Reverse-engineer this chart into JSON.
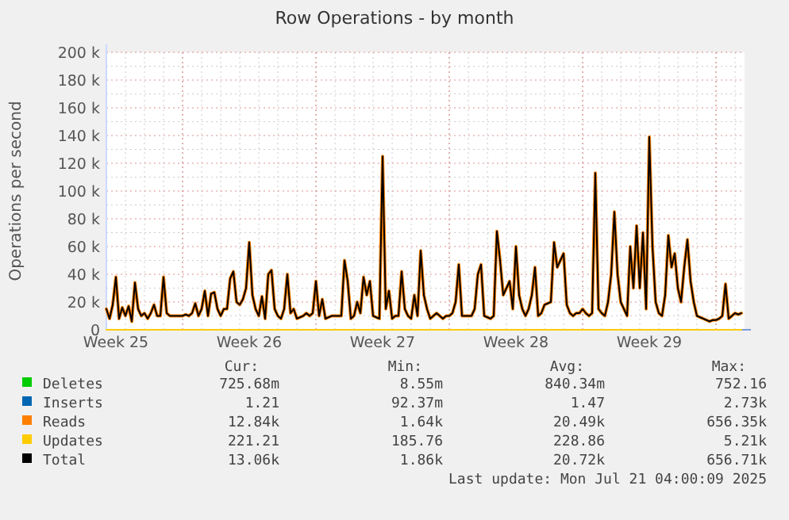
{
  "chart_data": {
    "type": "line",
    "title": "Row Operations - by month",
    "ylabel": "Operations per second",
    "categories": [
      null,
      null,
      null,
      "Week 25",
      null,
      null,
      null,
      null,
      null,
      null,
      null,
      null,
      null,
      null,
      null,
      null,
      null,
      null,
      null,
      null,
      null,
      null,
      null,
      null,
      null,
      null,
      null,
      null,
      null,
      null,
      null,
      null,
      null,
      null,
      null,
      null,
      null,
      null,
      null,
      null,
      null,
      null,
      null,
      null,
      null,
      "Week 26",
      null,
      null,
      null,
      null,
      null,
      null,
      null,
      null,
      null,
      null,
      null,
      null,
      null,
      null,
      null,
      null,
      null,
      null,
      null,
      null,
      null,
      null,
      null,
      null,
      null,
      null,
      null,
      null,
      null,
      null,
      null,
      null,
      null,
      null,
      null,
      null,
      null,
      null,
      null,
      null,
      null,
      "Week 27",
      null,
      null,
      null,
      null,
      null,
      null,
      null,
      null,
      null,
      null,
      null,
      null,
      null,
      null,
      null,
      null,
      null,
      null,
      null,
      null,
      null,
      null,
      null,
      null,
      null,
      null,
      null,
      null,
      null,
      null,
      null,
      null,
      null,
      null,
      null,
      null,
      null,
      null,
      null,
      null,
      null,
      "Week 28",
      null,
      null,
      null,
      null,
      null,
      null,
      null,
      null,
      null,
      null,
      null,
      null,
      null,
      null,
      null,
      null,
      null,
      null,
      null,
      null,
      null,
      null,
      null,
      null,
      null,
      null,
      null,
      null,
      null,
      null,
      null,
      null,
      null,
      null,
      null,
      null,
      null,
      null,
      null,
      null,
      null,
      "Week 29",
      null,
      null,
      null,
      null,
      null,
      null,
      null,
      null,
      null,
      null,
      null,
      null,
      null,
      null,
      null,
      null,
      null,
      null,
      null,
      null,
      null,
      null,
      null,
      null,
      null,
      null,
      null,
      null,
      null
    ],
    "ylim": [
      0,
      200000
    ],
    "yticks": [
      {
        "value": 0,
        "label": "0"
      },
      {
        "value": 20000,
        "label": "20 k"
      },
      {
        "value": 40000,
        "label": "40 k"
      },
      {
        "value": 60000,
        "label": "60 k"
      },
      {
        "value": 80000,
        "label": "80 k"
      },
      {
        "value": 100000,
        "label": "100 k"
      },
      {
        "value": 120000,
        "label": "120 k"
      },
      {
        "value": 140000,
        "label": "140 k"
      },
      {
        "value": 160000,
        "label": "160 k"
      },
      {
        "value": 180000,
        "label": "180 k"
      },
      {
        "value": 200000,
        "label": "200 k"
      }
    ],
    "grid": true,
    "legend": "bottom",
    "series": [
      {
        "name": "Deletes",
        "color": "#00cc00",
        "values": [
          null,
          null,
          null,
          null,
          null,
          null,
          null,
          null,
          null,
          null,
          null,
          null,
          null,
          null,
          null,
          null,
          null,
          null,
          null,
          null,
          null,
          null,
          null,
          null,
          null,
          null,
          null,
          null,
          null,
          null,
          null,
          null,
          null,
          null,
          null,
          null,
          null,
          null,
          null,
          null,
          null,
          null,
          null,
          null,
          null,
          null,
          null,
          null,
          null,
          null,
          null,
          null,
          null,
          null,
          null,
          null,
          null,
          null,
          null,
          null,
          null,
          null,
          null,
          null,
          null,
          null,
          null,
          null,
          null,
          null,
          null,
          null,
          null,
          null,
          null,
          null,
          null,
          null,
          null,
          null,
          null,
          null,
          null,
          null,
          null,
          null,
          null,
          null,
          null,
          null,
          null,
          null,
          null,
          null,
          null,
          null,
          null,
          null,
          null,
          null,
          null,
          null,
          null,
          null,
          null,
          null,
          null,
          null,
          null,
          null,
          null,
          null,
          null,
          null,
          null,
          null,
          null,
          null,
          null,
          null,
          null,
          null,
          null,
          null,
          null,
          null,
          null,
          null,
          null,
          null,
          null,
          null,
          null,
          null,
          null,
          null,
          null,
          null,
          null,
          null,
          null,
          null,
          null,
          null,
          null,
          null,
          null,
          null,
          null,
          null,
          null,
          null,
          null,
          null,
          null,
          null,
          null,
          null,
          null,
          null,
          null,
          null,
          null,
          null,
          null,
          null,
          null,
          null,
          null,
          null,
          null,
          null,
          null,
          null,
          null,
          null,
          null,
          null,
          null,
          null,
          null,
          null,
          null,
          null,
          null,
          null,
          null,
          null,
          null,
          null,
          null,
          null,
          null,
          null,
          null,
          null,
          null,
          null,
          null,
          null,
          null
        ]
      },
      {
        "name": "Inserts",
        "color": "#0066b3",
        "values": [
          null,
          null,
          null,
          null,
          null,
          null,
          null,
          null,
          null,
          null,
          null,
          null,
          null,
          null,
          null,
          null,
          null,
          null,
          null,
          null,
          null,
          null,
          null,
          null,
          null,
          null,
          null,
          null,
          null,
          null,
          null,
          null,
          null,
          null,
          null,
          null,
          null,
          null,
          null,
          null,
          null,
          null,
          null,
          null,
          null,
          null,
          null,
          null,
          null,
          null,
          null,
          null,
          null,
          null,
          null,
          null,
          null,
          null,
          null,
          null,
          null,
          null,
          null,
          null,
          null,
          null,
          null,
          null,
          null,
          null,
          null,
          null,
          null,
          null,
          null,
          null,
          null,
          null,
          null,
          null,
          null,
          null,
          null,
          null,
          null,
          null,
          null,
          null,
          null,
          null,
          null,
          null,
          null,
          null,
          null,
          null,
          null,
          null,
          null,
          null,
          null,
          null,
          null,
          null,
          null,
          null,
          null,
          null,
          null,
          null,
          null,
          null,
          null,
          null,
          null,
          null,
          null,
          null,
          null,
          null,
          null,
          null,
          null,
          null,
          null,
          null,
          null,
          null,
          null,
          null,
          null,
          null,
          null,
          null,
          null,
          null,
          null,
          null,
          null,
          null,
          null,
          null,
          null,
          null,
          null,
          null,
          null,
          null,
          null,
          null,
          null,
          null,
          null,
          null,
          null,
          null,
          null,
          null,
          null,
          null,
          null,
          null,
          null,
          null,
          null,
          null,
          null,
          null,
          null,
          null,
          null,
          null,
          null,
          null,
          null,
          null,
          null,
          null,
          null,
          null,
          null,
          null,
          null,
          null,
          null,
          null,
          null,
          null,
          null,
          null,
          null,
          null,
          null,
          null,
          null,
          null,
          null,
          null,
          null,
          null,
          null
        ]
      },
      {
        "name": "Reads",
        "color": "#ff8000",
        "values": [
          15000,
          8000,
          18000,
          38000,
          8000,
          16000,
          10000,
          17000,
          6000,
          34000,
          15000,
          10000,
          12000,
          8000,
          12000,
          18000,
          10000,
          10000,
          38000,
          12000,
          10000,
          10000,
          10000,
          10000,
          10000,
          11000,
          10000,
          12000,
          19000,
          10000,
          15000,
          28000,
          10000,
          26000,
          27000,
          15000,
          10000,
          15000,
          15000,
          37000,
          42000,
          20000,
          18000,
          22000,
          30000,
          63000,
          25000,
          15000,
          10000,
          24000,
          8000,
          40000,
          43000,
          15000,
          10000,
          8000,
          15000,
          40000,
          12000,
          15000,
          8000,
          9000,
          10000,
          12000,
          10000,
          12000,
          35000,
          10000,
          22000,
          8000,
          9000,
          10000,
          10000,
          10000,
          10000,
          50000,
          35000,
          8000,
          10000,
          20000,
          12000,
          38000,
          25000,
          35000,
          10000,
          9000,
          8000,
          125000,
          15000,
          28000,
          8000,
          10000,
          10000,
          42000,
          15000,
          10000,
          8000,
          25000,
          10000,
          57000,
          25000,
          15000,
          8000,
          10000,
          12000,
          10000,
          8000,
          10000,
          10000,
          12000,
          20000,
          47000,
          10000,
          10000,
          10000,
          10000,
          15000,
          40000,
          47000,
          10000,
          9000,
          8000,
          10000,
          71000,
          50000,
          25000,
          30000,
          35000,
          15000,
          60000,
          25000,
          15000,
          10000,
          15000,
          25000,
          45000,
          10000,
          12000,
          18000,
          19000,
          20000,
          63000,
          45000,
          50000,
          55000,
          18000,
          12000,
          10000,
          12000,
          12000,
          15000,
          12000,
          10000,
          12000,
          113000,
          15000,
          12000,
          10000,
          20000,
          40000,
          85000,
          40000,
          20000,
          15000,
          10000,
          60000,
          30000,
          75000,
          30000,
          70000,
          15000,
          139000,
          60000,
          20000,
          12000,
          10000,
          25000,
          68000,
          45000,
          55000,
          30000,
          20000,
          45000,
          65000,
          35000,
          20000,
          10000,
          9000,
          8000,
          7000,
          6000,
          7000,
          7000,
          8000,
          10000,
          33000,
          8000,
          10000,
          12000,
          11000,
          12000
        ]
      },
      {
        "name": "Updates",
        "color": "#ffcc00",
        "values": [
          0,
          0,
          0,
          0,
          0,
          0,
          0,
          0,
          0,
          0,
          0,
          0,
          0,
          0,
          0,
          0,
          0,
          0,
          0,
          0,
          0,
          0,
          0,
          0,
          0,
          0,
          0,
          0,
          0,
          0,
          0,
          0,
          0,
          0,
          0,
          0,
          0,
          0,
          0,
          0,
          0,
          0,
          0,
          0,
          0,
          0,
          0,
          0,
          0,
          0,
          0,
          0,
          0,
          0,
          0,
          0,
          0,
          0,
          0,
          0,
          0,
          0,
          0,
          0,
          0,
          0,
          0,
          0,
          0,
          0,
          0,
          0,
          0,
          0,
          0,
          0,
          0,
          0,
          0,
          0,
          0,
          0,
          0,
          0,
          0,
          0,
          0,
          0,
          0,
          0,
          0,
          0,
          0,
          0,
          0,
          0,
          0,
          0,
          0,
          0,
          0,
          0,
          0,
          0,
          0,
          0,
          0,
          0,
          0,
          0,
          0,
          0,
          0,
          0,
          0,
          0,
          0,
          0,
          0,
          0,
          0,
          0,
          0,
          0,
          0,
          0,
          0,
          0,
          0,
          0,
          0,
          0,
          0,
          0,
          0,
          0,
          0,
          0,
          0,
          0,
          0,
          0,
          0,
          0,
          0,
          0,
          0,
          0,
          0,
          0,
          0,
          0,
          0,
          0,
          0,
          0,
          0,
          0,
          0,
          0,
          0,
          0,
          0,
          0,
          0,
          0,
          0,
          0,
          0,
          0,
          0,
          0,
          0,
          0,
          0,
          0,
          0,
          0,
          0,
          0,
          0,
          0,
          0,
          0,
          0,
          0,
          0,
          0,
          0,
          0,
          0,
          0,
          0,
          0,
          0,
          0,
          0,
          0,
          0,
          0,
          0
        ]
      },
      {
        "name": "Total",
        "color": "#000000",
        "values": [
          15000,
          8000,
          18000,
          38000,
          8000,
          16000,
          10000,
          17000,
          6000,
          34000,
          15000,
          10000,
          12000,
          8000,
          12000,
          18000,
          10000,
          10000,
          38000,
          12000,
          10000,
          10000,
          10000,
          10000,
          10000,
          11000,
          10000,
          12000,
          19000,
          10000,
          15000,
          28000,
          10000,
          26000,
          27000,
          15000,
          10000,
          15000,
          15000,
          37000,
          42000,
          20000,
          18000,
          22000,
          30000,
          63000,
          25000,
          15000,
          10000,
          24000,
          8000,
          40000,
          43000,
          15000,
          10000,
          8000,
          15000,
          40000,
          12000,
          15000,
          8000,
          9000,
          10000,
          12000,
          10000,
          12000,
          35000,
          10000,
          22000,
          8000,
          9000,
          10000,
          10000,
          10000,
          10000,
          50000,
          35000,
          8000,
          10000,
          20000,
          12000,
          38000,
          25000,
          35000,
          10000,
          9000,
          8000,
          125000,
          15000,
          28000,
          8000,
          10000,
          10000,
          42000,
          15000,
          10000,
          8000,
          25000,
          10000,
          57000,
          25000,
          15000,
          8000,
          10000,
          12000,
          10000,
          8000,
          10000,
          10000,
          12000,
          20000,
          47000,
          10000,
          10000,
          10000,
          10000,
          15000,
          40000,
          47000,
          10000,
          9000,
          8000,
          10000,
          71000,
          50000,
          25000,
          30000,
          35000,
          15000,
          60000,
          25000,
          15000,
          10000,
          15000,
          25000,
          45000,
          10000,
          12000,
          18000,
          19000,
          20000,
          63000,
          45000,
          50000,
          55000,
          18000,
          12000,
          10000,
          12000,
          12000,
          15000,
          12000,
          10000,
          12000,
          113000,
          15000,
          12000,
          10000,
          20000,
          40000,
          85000,
          40000,
          20000,
          15000,
          10000,
          60000,
          30000,
          75000,
          30000,
          70000,
          15000,
          139000,
          60000,
          20000,
          12000,
          10000,
          25000,
          68000,
          45000,
          55000,
          30000,
          20000,
          45000,
          65000,
          35000,
          20000,
          10000,
          9000,
          8000,
          7000,
          6000,
          7000,
          7000,
          8000,
          10000,
          33000,
          8000,
          10000,
          12000,
          11000,
          12000
        ]
      }
    ],
    "annotations": [
      "Cur:",
      "Min:",
      "Avg:",
      "Max:",
      "725.68m",
      "8.55m",
      "840.34m",
      "752.16",
      "1.21",
      "92.37m",
      "1.47",
      "2.73k",
      "12.84k",
      "1.64k",
      "20.49k",
      "656.35k",
      "221.21",
      "185.76",
      "228.86",
      "5.21k",
      "13.06k",
      "1.86k",
      "20.72k",
      "656.71k",
      "Last update: Mon Jul 21 04:00:09 2025"
    ]
  }
}
